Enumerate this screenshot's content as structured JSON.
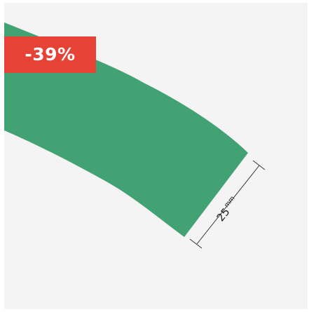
{
  "badge": {
    "text": "-39%",
    "color": "#e64236"
  },
  "product": {
    "strip_color": "#43a273",
    "background_color": "#f4f4f4"
  },
  "dimension": {
    "value": "25",
    "unit": "mm"
  }
}
